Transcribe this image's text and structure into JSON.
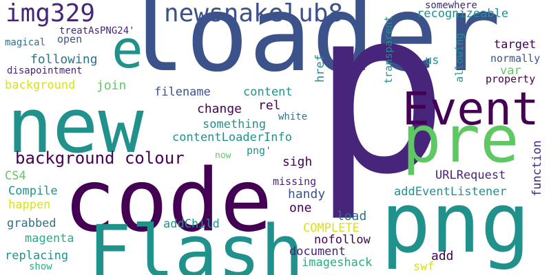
{
  "words": {
    "loader": "loader",
    "p": "p",
    "code": "code",
    "new": "new",
    "png": "png",
    "flash": "Flash",
    "pre": "pre",
    "event": "Event",
    "e": "e",
    "img329": "img329",
    "newsnakelub8": "newsnakelub8",
    "background_colour": "background colour",
    "treatAsPNG24": "treatAsPNG24'",
    "open": "open",
    "magical": "magical",
    "following": "following",
    "disapointment": "disapointment",
    "background": "background",
    "join": "join",
    "filename": "filename",
    "content": "content",
    "rel": "rel",
    "change": "change",
    "something": "something",
    "contentLoaderInfo": "contentLoaderInfo",
    "png_quote": "png'",
    "now": "now",
    "sigh": "sigh",
    "cs4": "CS4",
    "compile": "Compile",
    "happen": "happen",
    "grabbed": "grabbed",
    "magenta": "magenta",
    "replacing": "replacing",
    "show": "show",
    "addChild": "addChild",
    "handy": "handy",
    "one": "one",
    "missing": "missing",
    "complete": "COMPLETE",
    "nofollow": "nofollow",
    "document": "document",
    "imageshack": "imageshack",
    "load": "load",
    "add": "add",
    "swf": "swf",
    "addEventListener": "addEventListener",
    "urlrequest": "URLRequest",
    "somewhere": "somewhere",
    "recognizeable": "recognizeable",
    "target": "target",
    "normally": "normally",
    "us": "us",
    "var": "var",
    "property": "property",
    "white": "white",
    "href": "href",
    "transparent": "transparent",
    "allowing": "allowing",
    "function": "function"
  }
}
